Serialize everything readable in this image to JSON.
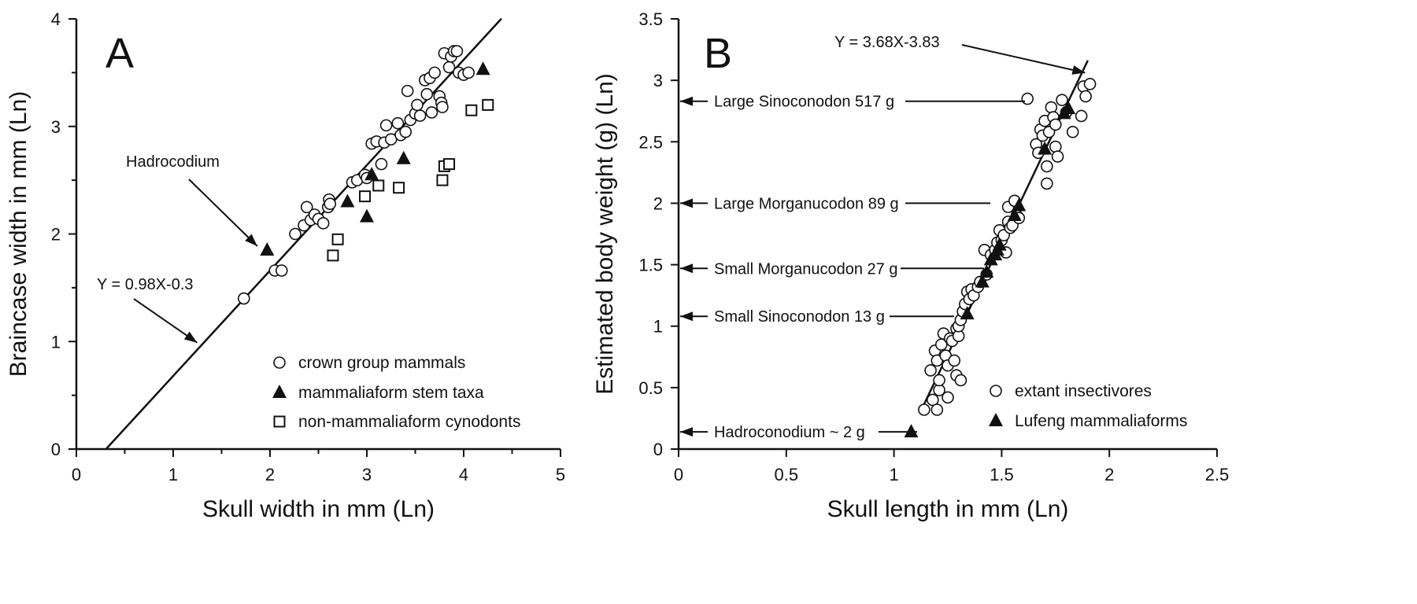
{
  "chart_data": [
    {
      "panel": "A",
      "type": "scatter",
      "xlabel": "Skull width in mm (Ln)",
      "ylabel": "Braincase width in mm (Ln)",
      "xlim": [
        0,
        5
      ],
      "ylim": [
        0,
        4
      ],
      "xticks": [
        "0",
        "1",
        "2",
        "3",
        "4",
        "5"
      ],
      "yticks": [
        "0",
        "1",
        "2",
        "3",
        "4"
      ],
      "equation": "Y = 0.98X-0.3",
      "fit": {
        "slope": 0.98,
        "intercept": -0.3,
        "x_range": [
          0.31,
          4.39
        ]
      },
      "annotations": [
        {
          "text": "Hadrocodium",
          "points_to": [
            1.95,
            1.85
          ]
        },
        {
          "text": "Y = 0.98X-0.3",
          "points_to": [
            1.28,
            0.96
          ]
        }
      ],
      "legend_position": "bottom-right",
      "series": [
        {
          "name": "crown group mammals",
          "marker": "open-circle",
          "points": [
            [
              1.73,
              1.4
            ],
            [
              2.05,
              1.66
            ],
            [
              2.12,
              1.66
            ],
            [
              2.26,
              2.0
            ],
            [
              2.35,
              2.08
            ],
            [
              2.38,
              2.25
            ],
            [
              2.42,
              2.13
            ],
            [
              2.46,
              2.18
            ],
            [
              2.5,
              2.14
            ],
            [
              2.55,
              2.1
            ],
            [
              2.6,
              2.25
            ],
            [
              2.61,
              2.32
            ],
            [
              2.62,
              2.28
            ],
            [
              2.85,
              2.48
            ],
            [
              2.9,
              2.5
            ],
            [
              2.98,
              2.55
            ],
            [
              3.0,
              2.52
            ],
            [
              3.05,
              2.84
            ],
            [
              3.1,
              2.86
            ],
            [
              3.15,
              2.65
            ],
            [
              3.18,
              2.85
            ],
            [
              3.2,
              3.01
            ],
            [
              3.25,
              2.88
            ],
            [
              3.32,
              3.03
            ],
            [
              3.35,
              2.92
            ],
            [
              3.4,
              2.95
            ],
            [
              3.42,
              3.33
            ],
            [
              3.45,
              3.06
            ],
            [
              3.5,
              3.12
            ],
            [
              3.52,
              3.2
            ],
            [
              3.55,
              3.1
            ],
            [
              3.6,
              3.43
            ],
            [
              3.62,
              3.3
            ],
            [
              3.65,
              3.45
            ],
            [
              3.67,
              3.13
            ],
            [
              3.7,
              3.5
            ],
            [
              3.75,
              3.28
            ],
            [
              3.77,
              3.22
            ],
            [
              3.78,
              3.18
            ],
            [
              3.8,
              3.68
            ],
            [
              3.85,
              3.55
            ],
            [
              3.87,
              3.65
            ],
            [
              3.9,
              3.7
            ],
            [
              3.93,
              3.7
            ],
            [
              3.95,
              3.5
            ],
            [
              4.0,
              3.48
            ],
            [
              4.05,
              3.5
            ]
          ]
        },
        {
          "name": "mammaliaform stem taxa",
          "marker": "filled-triangle",
          "points": [
            [
              1.97,
              1.85
            ],
            [
              2.8,
              2.3
            ],
            [
              3.0,
              2.16
            ],
            [
              3.05,
              2.55
            ],
            [
              3.38,
              2.7
            ],
            [
              4.2,
              3.53
            ]
          ]
        },
        {
          "name": "non-mammaliaform cynodonts",
          "marker": "open-square",
          "points": [
            [
              2.65,
              1.8
            ],
            [
              2.7,
              1.95
            ],
            [
              2.98,
              2.35
            ],
            [
              3.12,
              2.45
            ],
            [
              3.33,
              2.43
            ],
            [
              3.78,
              2.5
            ],
            [
              3.8,
              2.63
            ],
            [
              3.85,
              2.65
            ],
            [
              4.08,
              3.15
            ],
            [
              4.25,
              3.2
            ]
          ]
        }
      ]
    },
    {
      "panel": "B",
      "type": "scatter",
      "xlabel": "Skull length in mm (Ln)",
      "ylabel": "Estimated body weight (g) (Ln)",
      "xlim": [
        0,
        2.5
      ],
      "ylim": [
        0,
        3.5
      ],
      "xticks": [
        "0",
        "0.5",
        "1",
        "1.5",
        "2",
        "2.5"
      ],
      "yticks": [
        "0",
        "0.5",
        "1",
        "1.5",
        "2",
        "2.5",
        "3",
        "3.5"
      ],
      "equation": "Y = 3.68X-3.83",
      "fit": {
        "slope": 3.68,
        "intercept": -3.83,
        "x_range": [
          1.12,
          1.9
        ]
      },
      "annotations": [
        {
          "text": "Y = 3.68X-3.83",
          "points_to": [
            1.88,
            3.1
          ]
        },
        {
          "text": "Large Sinoconodon 517 g",
          "y": 2.83
        },
        {
          "text": "Large Morganucodon 89 g",
          "y": 2.0
        },
        {
          "text": "Small Morganucodon 27 g",
          "y": 1.47
        },
        {
          "text": "Small Sinoconodon 13 g",
          "y": 1.08
        },
        {
          "text": "Hadroconodium ~ 2 g",
          "y": 0.14
        }
      ],
      "legend_position": "bottom-right",
      "series": [
        {
          "name": "extant insectivores",
          "marker": "open-circle",
          "points": [
            [
              1.14,
              0.32
            ],
            [
              1.17,
              0.64
            ],
            [
              1.18,
              0.4
            ],
            [
              1.19,
              0.8
            ],
            [
              1.2,
              0.72
            ],
            [
              1.2,
              0.32
            ],
            [
              1.21,
              0.48
            ],
            [
              1.21,
              0.56
            ],
            [
              1.22,
              0.85
            ],
            [
              1.23,
              0.94
            ],
            [
              1.24,
              0.76
            ],
            [
              1.25,
              0.68
            ],
            [
              1.25,
              0.42
            ],
            [
              1.26,
              0.9
            ],
            [
              1.27,
              0.88
            ],
            [
              1.28,
              0.72
            ],
            [
              1.29,
              0.98
            ],
            [
              1.29,
              0.6
            ],
            [
              1.3,
              0.92
            ],
            [
              1.3,
              1.0
            ],
            [
              1.31,
              1.05
            ],
            [
              1.31,
              0.56
            ],
            [
              1.32,
              1.12
            ],
            [
              1.33,
              1.18
            ],
            [
              1.34,
              1.28
            ],
            [
              1.35,
              1.22
            ],
            [
              1.36,
              1.3
            ],
            [
              1.37,
              1.25
            ],
            [
              1.39,
              1.32
            ],
            [
              1.4,
              1.36
            ],
            [
              1.42,
              1.62
            ],
            [
              1.43,
              1.42
            ],
            [
              1.45,
              1.58
            ],
            [
              1.47,
              1.62
            ],
            [
              1.48,
              1.68
            ],
            [
              1.49,
              1.78
            ],
            [
              1.5,
              1.7
            ],
            [
              1.51,
              1.74
            ],
            [
              1.52,
              1.6
            ],
            [
              1.53,
              1.85
            ],
            [
              1.53,
              1.97
            ],
            [
              1.54,
              1.8
            ],
            [
              1.55,
              1.82
            ],
            [
              1.56,
              2.02
            ],
            [
              1.57,
              1.9
            ],
            [
              1.58,
              1.88
            ],
            [
              1.62,
              2.85
            ],
            [
              1.66,
              2.48
            ],
            [
              1.67,
              2.41
            ],
            [
              1.68,
              2.6
            ],
            [
              1.69,
              2.55
            ],
            [
              1.7,
              2.67
            ],
            [
              1.71,
              2.3
            ],
            [
              1.71,
              2.16
            ],
            [
              1.72,
              2.58
            ],
            [
              1.73,
              2.78
            ],
            [
              1.74,
              2.7
            ],
            [
              1.75,
              2.64
            ],
            [
              1.75,
              2.46
            ],
            [
              1.76,
              2.38
            ],
            [
              1.78,
              2.84
            ],
            [
              1.8,
              2.74
            ],
            [
              1.83,
              2.58
            ],
            [
              1.87,
              2.71
            ],
            [
              1.88,
              2.95
            ],
            [
              1.89,
              2.87
            ],
            [
              1.91,
              2.97
            ]
          ]
        },
        {
          "name": "Lufeng mammaliaforms",
          "marker": "filled-triangle",
          "points": [
            [
              1.08,
              0.14
            ],
            [
              1.34,
              1.1
            ],
            [
              1.41,
              1.36
            ],
            [
              1.43,
              1.44
            ],
            [
              1.45,
              1.54
            ],
            [
              1.47,
              1.58
            ],
            [
              1.48,
              1.62
            ],
            [
              1.49,
              1.66
            ],
            [
              1.56,
              1.9
            ],
            [
              1.58,
              1.98
            ],
            [
              1.7,
              2.44
            ],
            [
              1.79,
              2.73
            ],
            [
              1.81,
              2.77
            ]
          ]
        }
      ]
    }
  ]
}
